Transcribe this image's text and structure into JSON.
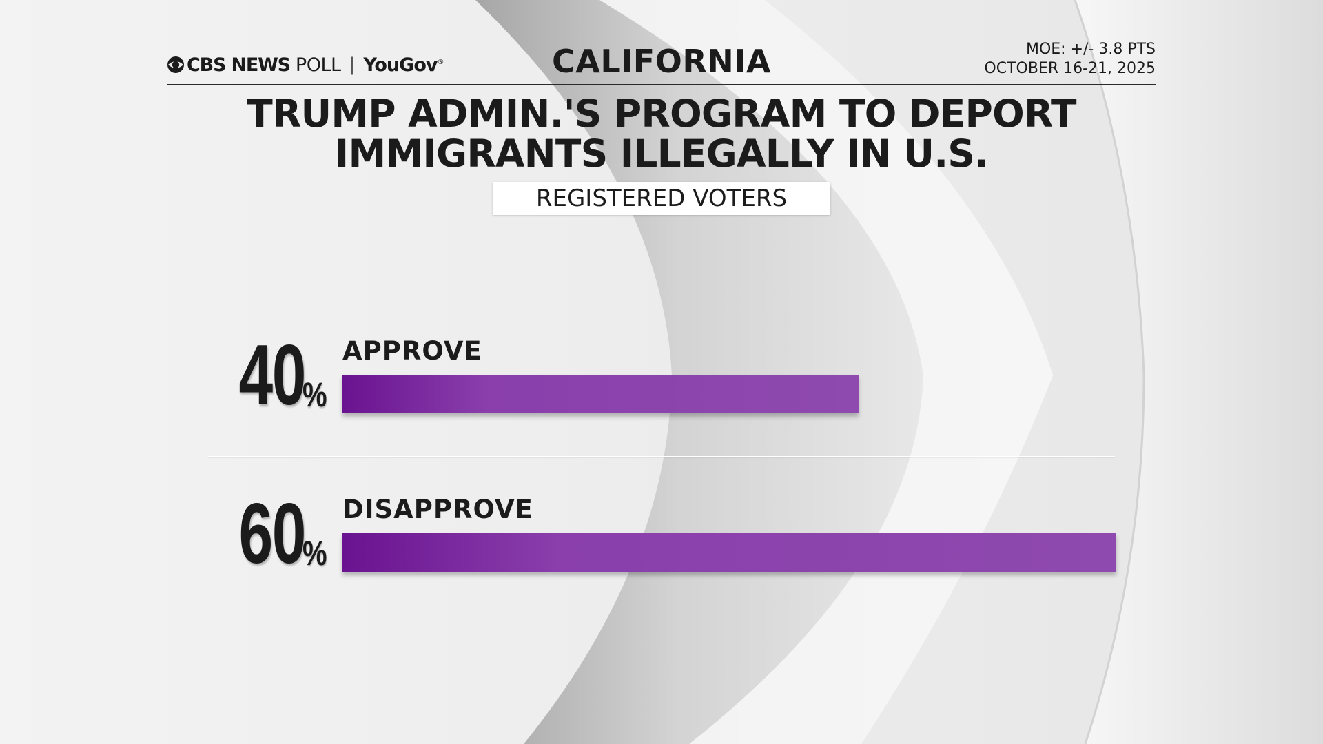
{
  "header": {
    "brand_cbs": "CBS NEWS",
    "brand_poll": "POLL",
    "brand_separator": "|",
    "brand_partner": "YouGov",
    "state": "CALIFORNIA",
    "moe": "MOE: +/- 3.8 PTS",
    "dates": "OCTOBER 16-21, 2025"
  },
  "colors": {
    "bar_start": "#6a1390",
    "bar_end": "#8e4aae",
    "text": "#1b1b1b"
  },
  "chart_data": {
    "type": "bar",
    "orientation": "horizontal",
    "title_lines": [
      "TRUMP ADMIN.'S PROGRAM TO DEPORT",
      "IMMIGRANTS ILLEGALLY IN U.S."
    ],
    "subtitle": "REGISTERED VOTERS",
    "categories": [
      "APPROVE",
      "DISAPPROVE"
    ],
    "values": [
      40,
      60
    ],
    "value_labels": [
      "40",
      "60"
    ],
    "unit": "%",
    "xlim": [
      0,
      60
    ],
    "grid": false,
    "legend": "none"
  }
}
